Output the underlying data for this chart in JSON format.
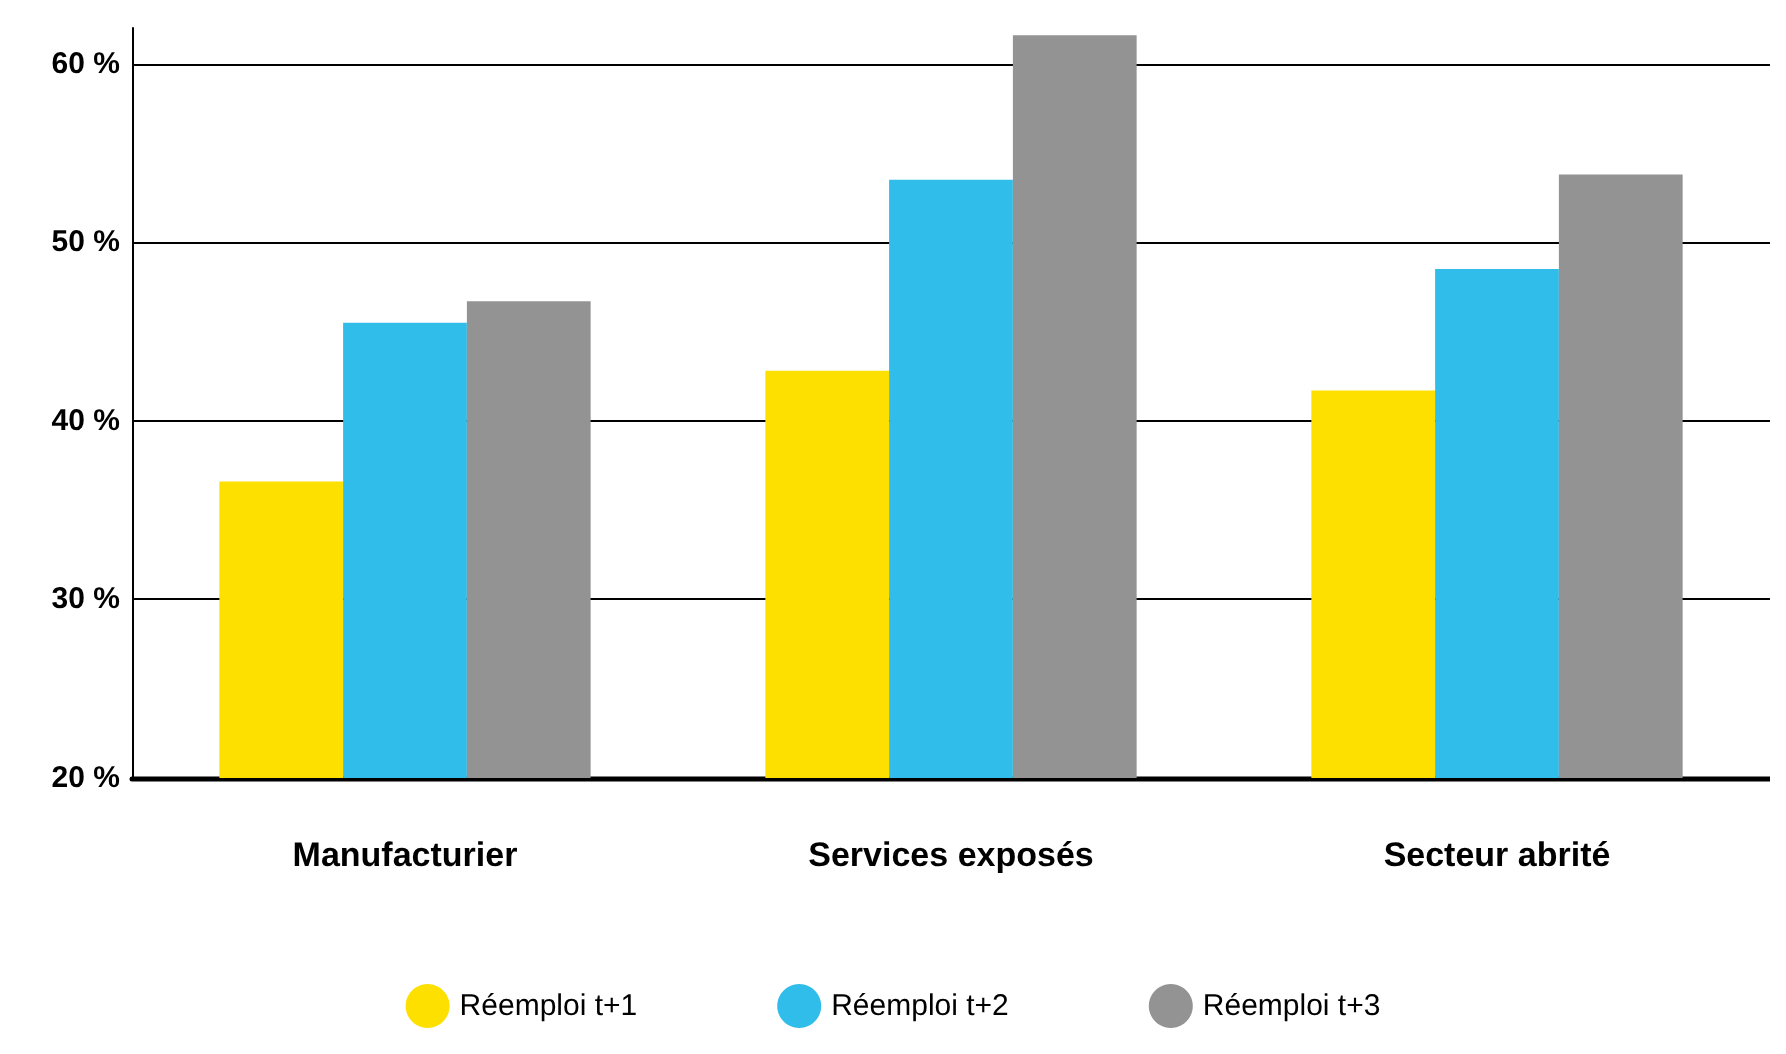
{
  "chart_data": {
    "type": "bar",
    "categories": [
      "Manufacturier",
      "Services exposés",
      "Secteur abrité"
    ],
    "series": [
      {
        "name": "Réemploi t+1",
        "color": "#fde000",
        "values": [
          36.6,
          42.8,
          41.7
        ]
      },
      {
        "name": "Réemploi t+2",
        "color": "#30bde9",
        "values": [
          45.5,
          53.5,
          48.5
        ]
      },
      {
        "name": "Réemploi t+3",
        "color": "#939393",
        "values": [
          46.7,
          61.6,
          53.8
        ]
      }
    ],
    "ylim": [
      20,
      62
    ],
    "yticks": [
      {
        "value": 20,
        "label": "20 %"
      },
      {
        "value": 30,
        "label": "30 %"
      },
      {
        "value": 40,
        "label": "40 %"
      },
      {
        "value": 50,
        "label": "50 %"
      },
      {
        "value": 60,
        "label": "60 %"
      }
    ],
    "grid": "y",
    "legend": "bottom"
  }
}
